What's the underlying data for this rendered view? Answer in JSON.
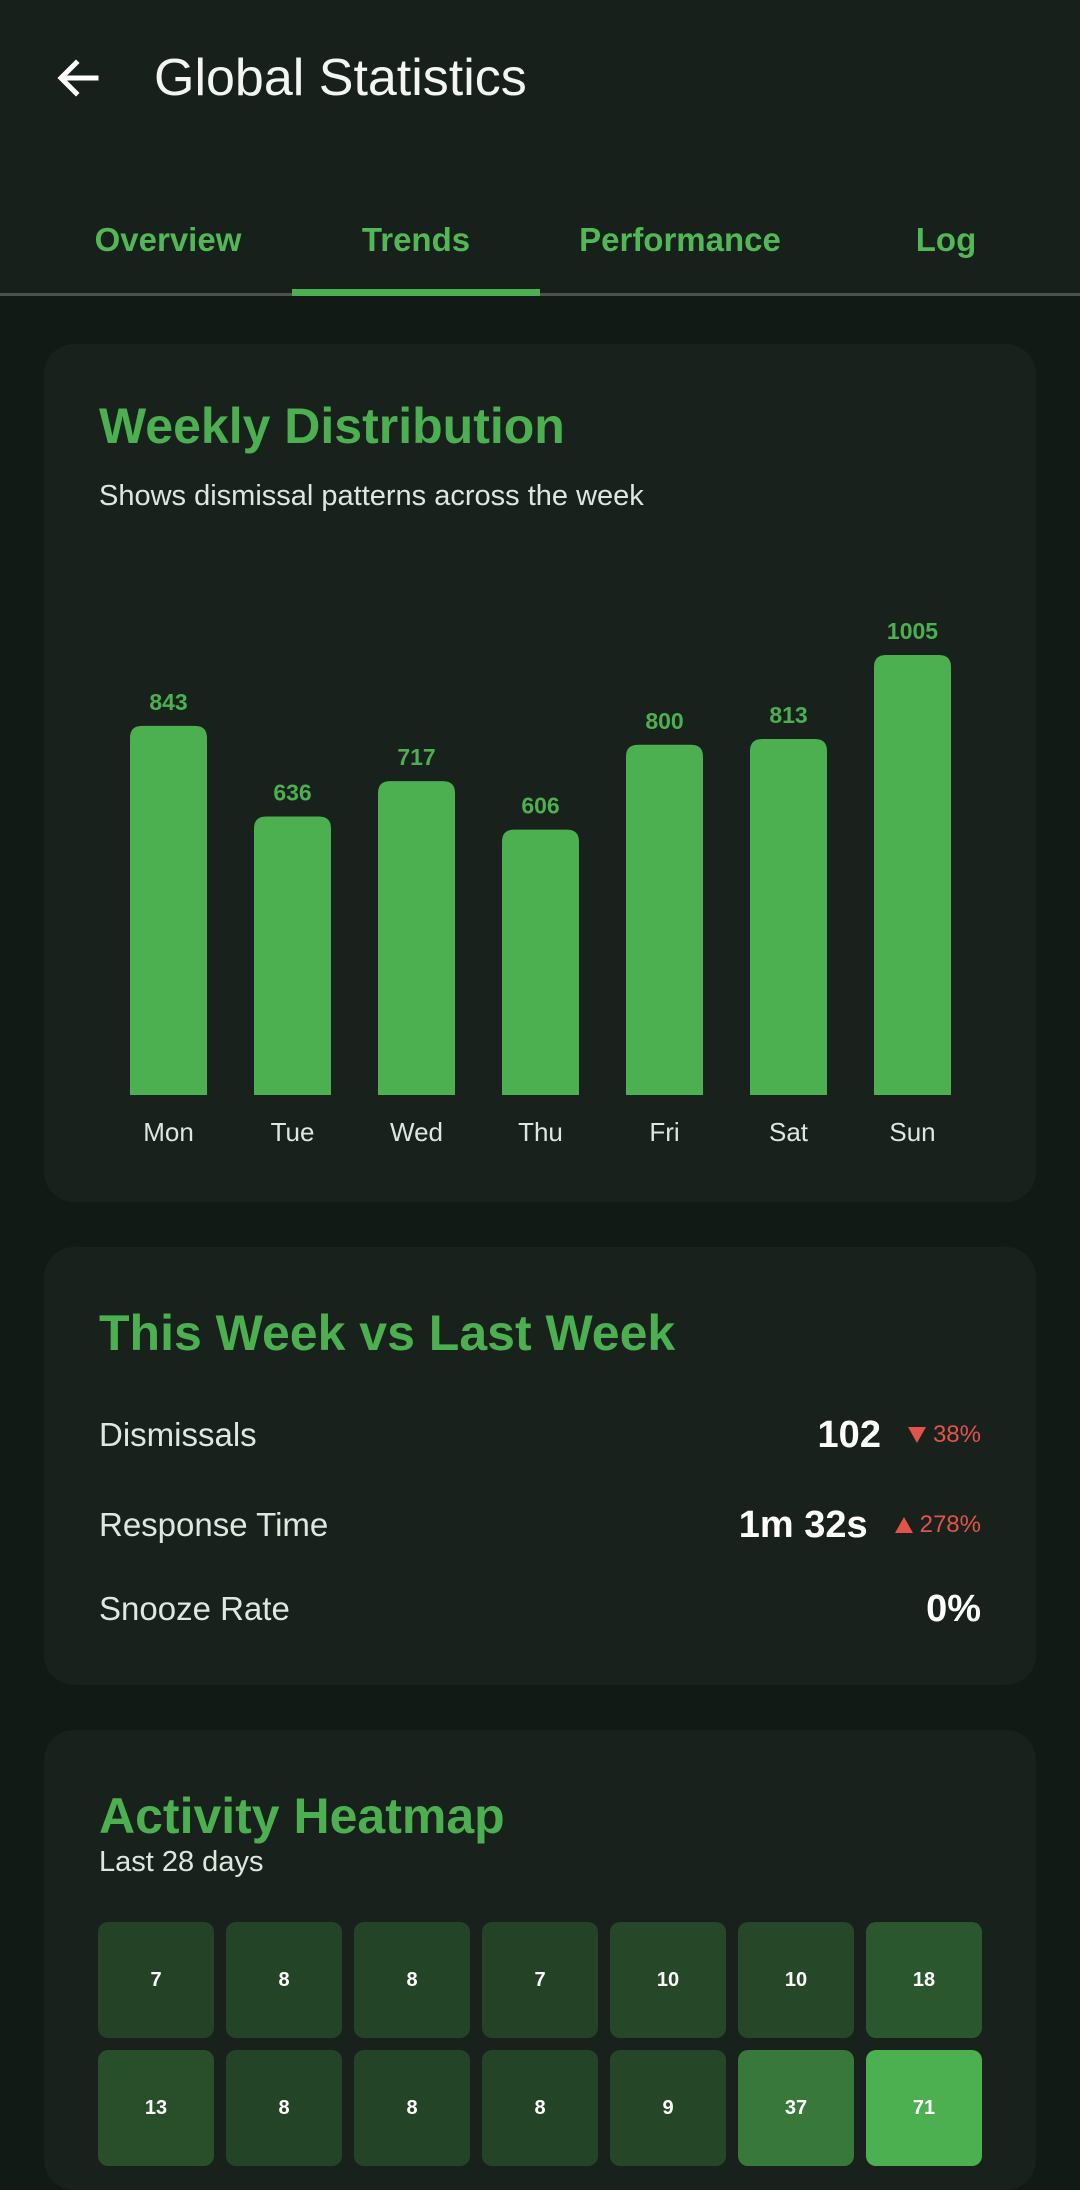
{
  "header": {
    "title": "Global Statistics",
    "back_icon": "arrow-left-icon"
  },
  "tabs": [
    {
      "label": "Overview",
      "active": false
    },
    {
      "label": "Trends",
      "active": true
    },
    {
      "label": "Performance",
      "active": false
    },
    {
      "label": "Log",
      "active": false
    }
  ],
  "weekly": {
    "title": "Weekly Distribution",
    "subtitle": "Shows dismissal patterns across the week"
  },
  "chart_data": {
    "type": "bar",
    "title": "Weekly Distribution",
    "subtitle": "Shows dismissal patterns across the week",
    "categories": [
      "Mon",
      "Tue",
      "Wed",
      "Thu",
      "Fri",
      "Sat",
      "Sun"
    ],
    "values": [
      843,
      636,
      717,
      606,
      800,
      813,
      1005
    ],
    "data_labels": [
      "843",
      "636",
      "717",
      "606",
      "800",
      "813",
      "1005"
    ],
    "ylim": [
      0,
      1005
    ],
    "grid": false,
    "bar_color": "#4caf50",
    "label_color": "#4caf50"
  },
  "comparison": {
    "title": "This Week vs Last Week",
    "rows": [
      {
        "label": "Dismissals",
        "value": "102",
        "delta": "38%",
        "direction": "down"
      },
      {
        "label": "Response Time",
        "value": "1m 32s",
        "delta": "278%",
        "direction": "up"
      },
      {
        "label": "Snooze Rate",
        "value": "0%",
        "delta": null,
        "direction": null
      }
    ],
    "delta_color": "#e2534b"
  },
  "heatmap": {
    "title": "Activity Heatmap",
    "subtitle": "Last 28 days",
    "rows": [
      [
        "7",
        "8",
        "8",
        "7",
        "10",
        "10",
        "18"
      ],
      [
        "13",
        "8",
        "8",
        "8",
        "9",
        "37",
        "71"
      ]
    ],
    "max_value": 71,
    "low_color": "#1e3320",
    "high_color": "#4caf50"
  },
  "colors": {
    "accent": "#4caf50",
    "background": "#111a14",
    "card": "#18211b",
    "app_bar": "#18201b",
    "negative": "#e2534b"
  }
}
